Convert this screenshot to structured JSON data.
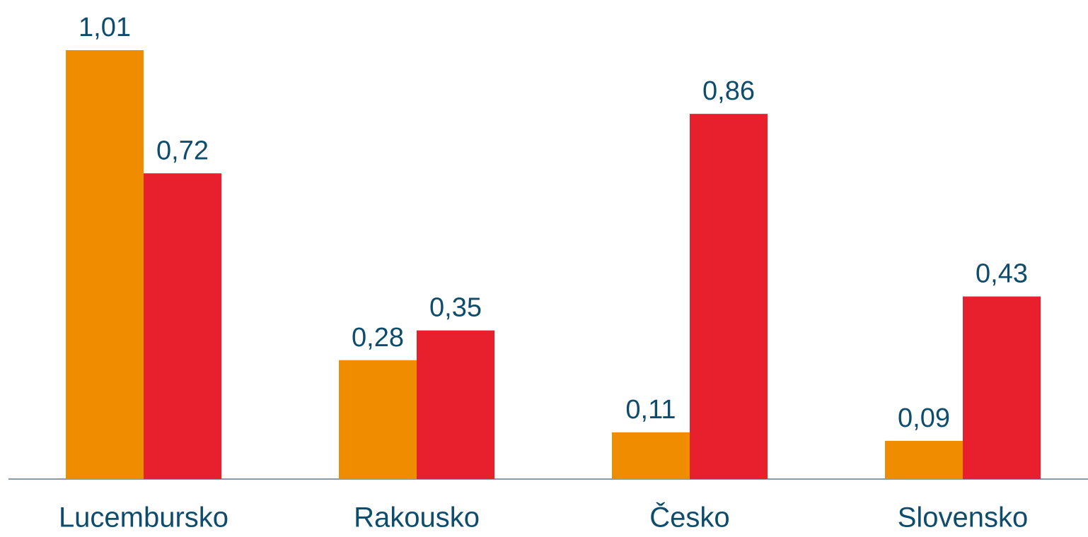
{
  "chart_data": {
    "type": "bar",
    "categories": [
      "Lucembursko",
      "Rakousko",
      "Česko",
      "Slovensko"
    ],
    "series": [
      {
        "color": "#f08c00",
        "values": [
          1.01,
          0.28,
          0.11,
          0.09
        ],
        "value_labels": [
          "1,01",
          "0,28",
          "0,11",
          "0,09"
        ]
      },
      {
        "color": "#e81f2d",
        "values": [
          0.72,
          0.35,
          0.86,
          0.43
        ],
        "value_labels": [
          "0,72",
          "0,35",
          "0,86",
          "0,43"
        ]
      }
    ]
  }
}
